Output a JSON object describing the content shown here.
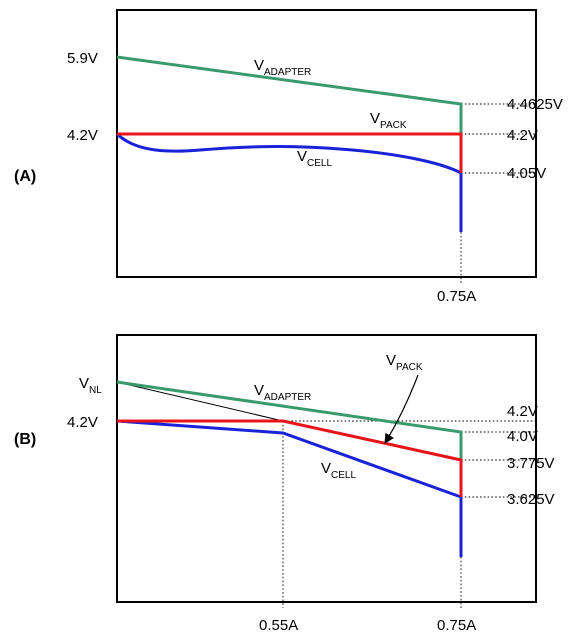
{
  "colors": {
    "adapter": "#3a9a6e",
    "pack": "#e8141a",
    "cell": "#1a22d8",
    "frame": "#000000"
  },
  "panel_a": {
    "id_label": "(A)",
    "left_top_label": "5.9V",
    "left_mid_label": "4.2V",
    "right_labels": [
      "4.4625V",
      "4.2V",
      "4.05V"
    ],
    "x_label": "0.75A",
    "adapter_label": {
      "main": "V",
      "sub": "ADAPTER"
    },
    "pack_label": {
      "main": "V",
      "sub": "PACK"
    },
    "cell_label": {
      "main": "V",
      "sub": "CELL"
    }
  },
  "panel_b": {
    "id_label": "(B)",
    "nl_label": {
      "main": "V",
      "sub": "NL"
    },
    "left_label": "4.2V",
    "right_labels": [
      "4.2V",
      "4.0V",
      "3.775V",
      "3.625V"
    ],
    "x_labels": [
      "0.55A",
      "0.75A"
    ],
    "adapter_label": {
      "main": "V",
      "sub": "ADAPTER"
    },
    "pack_label": {
      "main": "V",
      "sub": "PACK"
    },
    "cell_label": {
      "main": "V",
      "sub": "CELL"
    }
  }
}
